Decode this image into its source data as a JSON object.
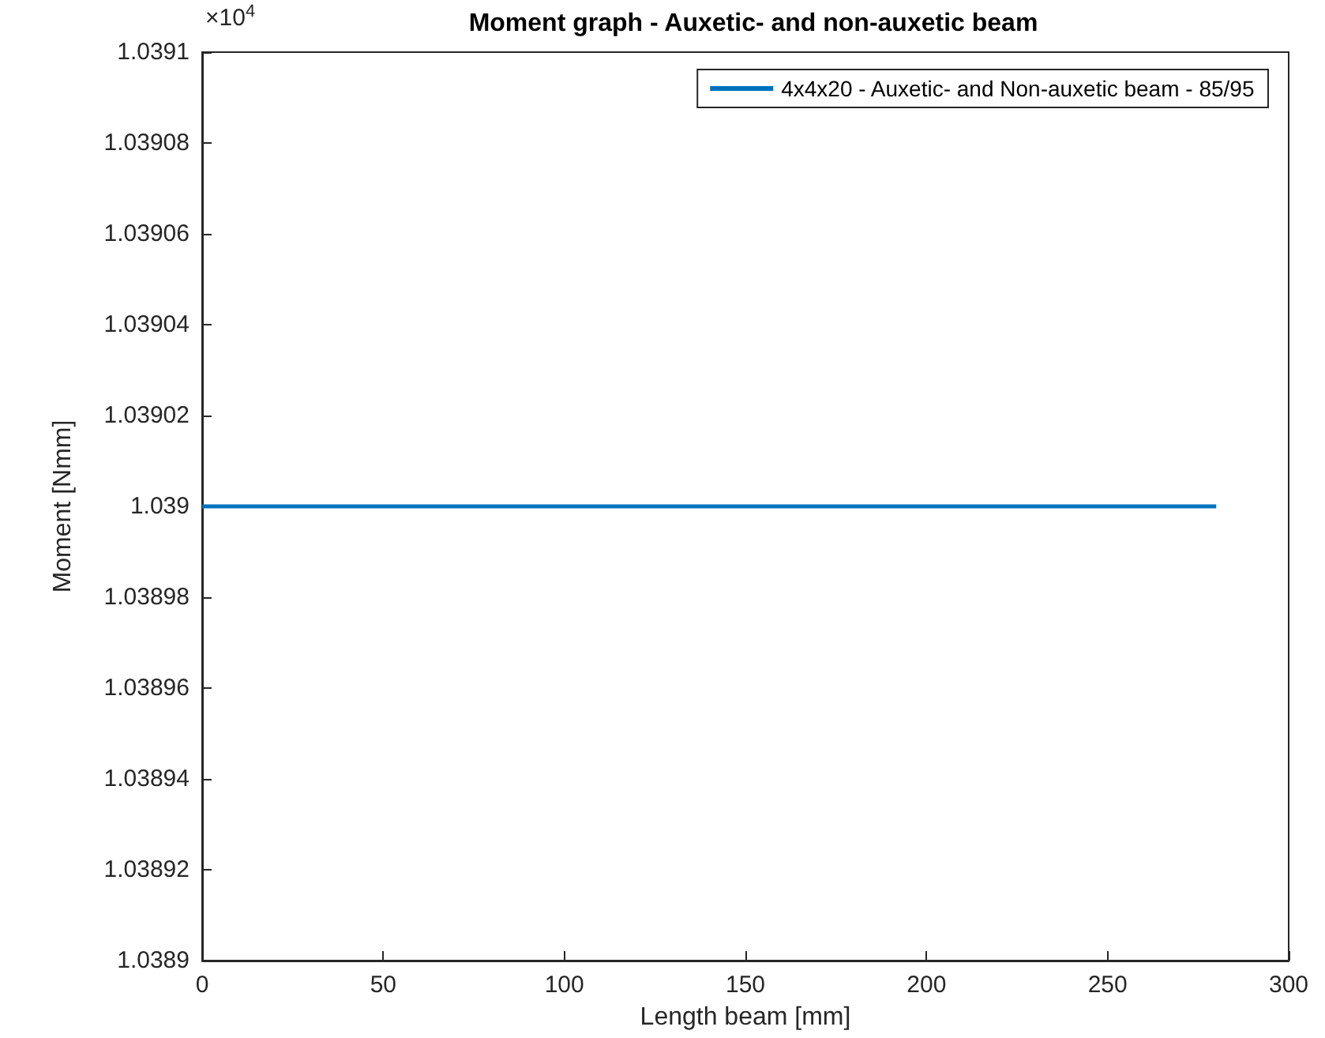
{
  "chart_data": {
    "type": "line",
    "title": "Moment graph - Auxetic- and non-auxetic beam",
    "xlabel": "Length beam [mm]",
    "ylabel": "Moment [Nmm]",
    "annotations": [
      "×10$^{4}$"
    ],
    "x": [
      0,
      280
    ],
    "series": [
      {
        "name": "4x4x20 - Auxetic- and Non-auxetic beam - 85/95",
        "color": "#0072bd",
        "values": [
          1.039,
          1.039
        ]
      }
    ],
    "xlim": [
      0,
      300
    ],
    "xticks": [
      0,
      50,
      100,
      150,
      200,
      250,
      300
    ],
    "ylim": [
      1.0389,
      1.0391
    ],
    "yticks": [
      1.0389,
      1.03892,
      1.03894,
      1.03896,
      1.03898,
      1.039,
      1.03902,
      1.03904,
      1.03906,
      1.03908,
      1.0391
    ],
    "grid": false,
    "legend": "top right",
    "marker": "none",
    "line_style": "solid"
  }
}
